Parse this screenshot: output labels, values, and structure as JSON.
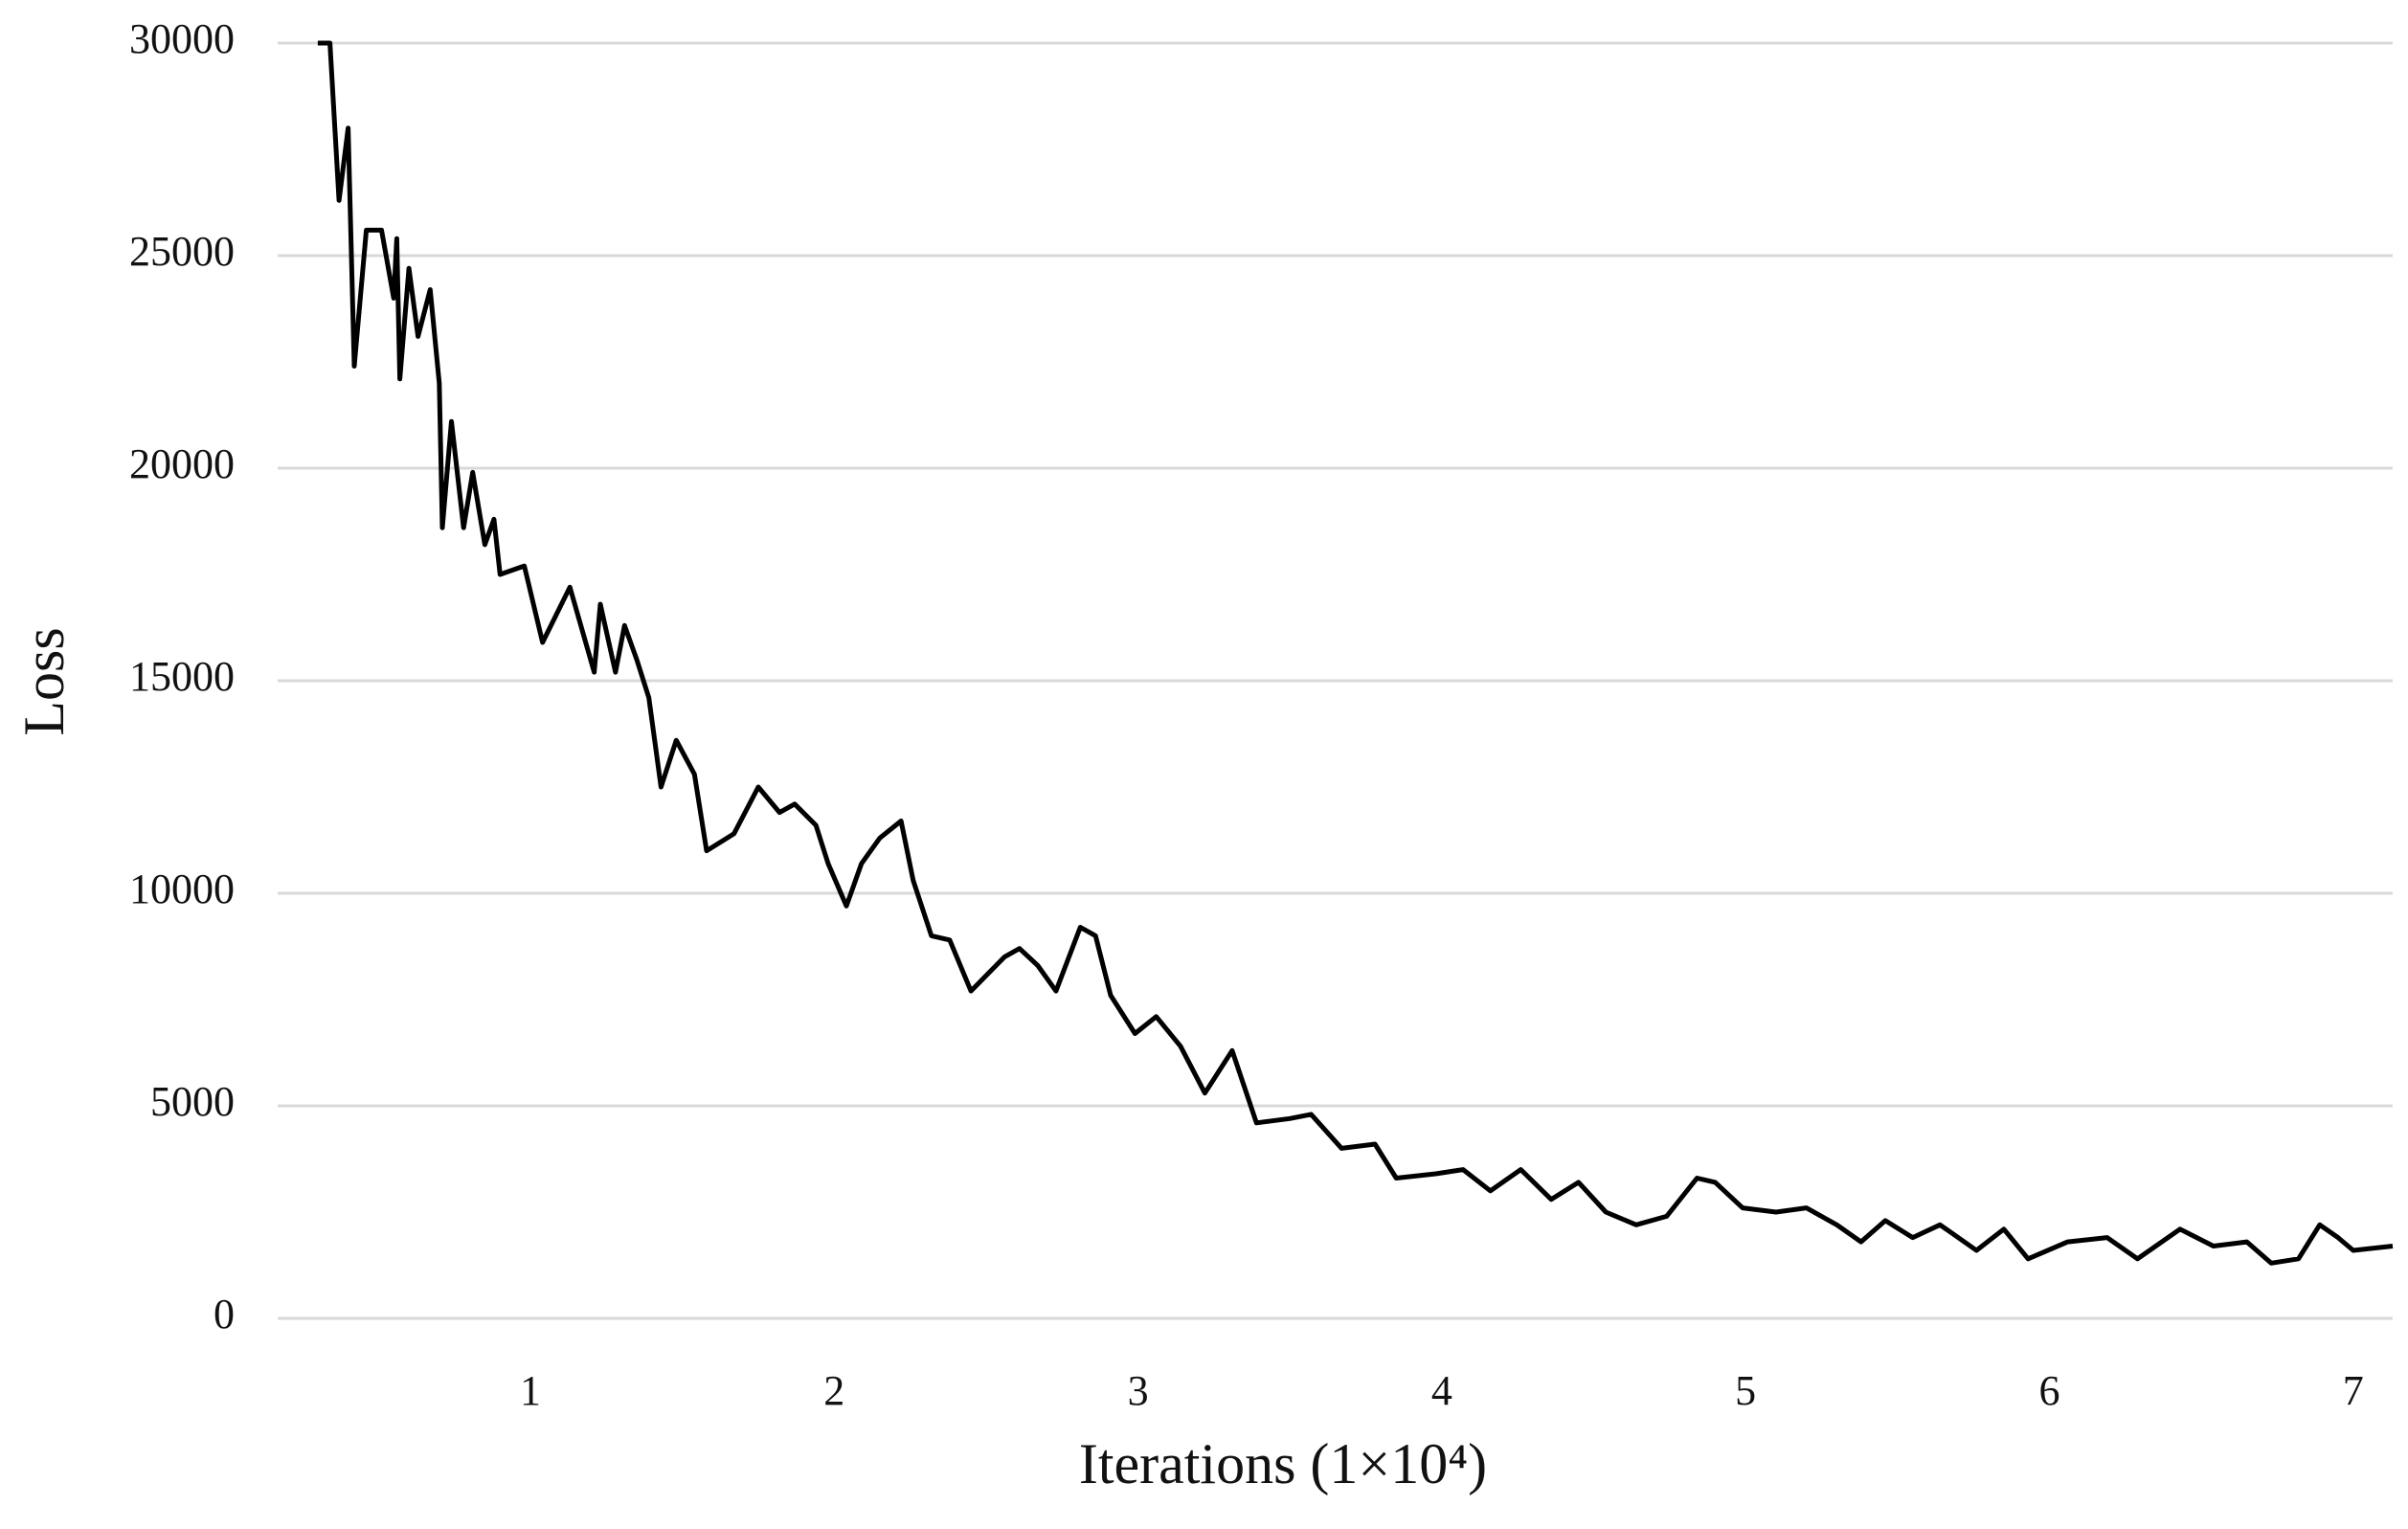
{
  "chart_data": {
    "type": "line",
    "x_label": "Iterations (1×10⁴)",
    "y_label": "Loss",
    "xlim": [
      0.168,
      7.13
    ],
    "xticks": [
      1,
      2,
      3,
      4,
      5,
      6,
      7
    ],
    "ylim": [
      0,
      30000
    ],
    "yticks": [
      0,
      5000,
      10000,
      15000,
      20000,
      25000,
      30000
    ],
    "grid": true,
    "series": [
      {
        "name": null,
        "color": "#000000",
        "x": [
          0.3,
          0.34,
          0.37,
          0.4,
          0.42,
          0.46,
          0.51,
          0.55,
          0.56,
          0.57,
          0.6,
          0.63,
          0.67,
          0.7,
          0.71,
          0.74,
          0.78,
          0.81,
          0.85,
          0.88,
          0.9,
          0.98,
          1.04,
          1.13,
          1.21,
          1.23,
          1.28,
          1.31,
          1.35,
          1.39,
          1.43,
          1.48,
          1.54,
          1.58,
          1.67,
          1.75,
          1.82,
          1.87,
          1.94,
          1.98,
          2.04,
          2.09,
          2.15,
          2.22,
          2.26,
          2.32,
          2.38,
          2.45,
          2.56,
          2.61,
          2.67,
          2.73,
          2.81,
          2.86,
          2.91,
          2.99,
          3.06,
          3.14,
          3.22,
          3.31,
          3.39,
          3.5,
          3.57,
          3.67,
          3.78,
          3.85,
          3.98,
          4.07,
          4.16,
          4.26,
          4.36,
          4.45,
          4.54,
          4.64,
          4.74,
          4.84,
          4.9,
          4.99,
          5.1,
          5.2,
          5.3,
          5.38,
          5.46,
          5.55,
          5.64,
          5.76,
          5.85,
          5.93,
          6.06,
          6.19,
          6.29,
          6.43,
          6.54,
          6.65,
          6.73,
          6.82,
          6.89,
          6.95,
          7.0,
          7.13
        ],
        "values": [
          30000,
          30000,
          26300,
          28000,
          22400,
          25600,
          25600,
          24000,
          25400,
          22100,
          24700,
          23100,
          24200,
          22000,
          18600,
          21100,
          18600,
          19900,
          18200,
          18800,
          17500,
          17700,
          15900,
          17200,
          15200,
          16800,
          15200,
          16300,
          15500,
          14600,
          12500,
          13600,
          12800,
          11000,
          11400,
          12500,
          11900,
          12100,
          11600,
          10700,
          9700,
          10700,
          11300,
          11700,
          10300,
          9000,
          8900,
          7700,
          8500,
          8700,
          8300,
          7700,
          9200,
          9000,
          7600,
          6700,
          7100,
          6400,
          5300,
          6300,
          4600,
          4700,
          4800,
          4000,
          4100,
          3300,
          3400,
          3500,
          3000,
          3500,
          2800,
          3200,
          2500,
          2200,
          2400,
          3300,
          3200,
          2600,
          2500,
          2600,
          2200,
          1800,
          2300,
          1900,
          2200,
          1600,
          2100,
          1400,
          1800,
          1900,
          1400,
          2100,
          1700,
          1800,
          1300,
          1400,
          2200,
          1900,
          1600,
          1700
        ]
      }
    ]
  }
}
